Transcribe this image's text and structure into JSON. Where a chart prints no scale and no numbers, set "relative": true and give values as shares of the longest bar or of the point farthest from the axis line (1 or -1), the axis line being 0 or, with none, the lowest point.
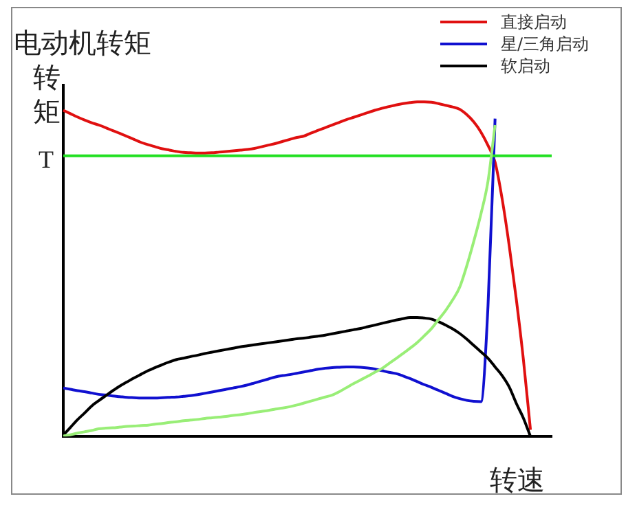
{
  "chart_data": {
    "type": "line",
    "title": "电动机转矩",
    "ylabel": "转矩",
    "xlabel": "转速",
    "relative": true,
    "legend": "top right",
    "marker": "none",
    "line_style": "solid",
    "grid": false,
    "categories": [
      null,
      null,
      null,
      null,
      null,
      null,
      null,
      null,
      null,
      null,
      null,
      null,
      null,
      null,
      null,
      null,
      null,
      null,
      null,
      null,
      null,
      null,
      null,
      null,
      null,
      null,
      null,
      null,
      null,
      null,
      null,
      null,
      null,
      null,
      null,
      null,
      null,
      null,
      null,
      null,
      null,
      null,
      null,
      null,
      null,
      null,
      null,
      null,
      null,
      null,
      null,
      null,
      null,
      null,
      null,
      null,
      null,
      null,
      null,
      null,
      null,
      null,
      null,
      null,
      null,
      null,
      null,
      null,
      null,
      null
    ],
    "annotations": [
      "T"
    ],
    "series": [
      {
        "name": "直接启动",
        "color": "#e01010",
        "values": [
          0.975,
          0.965,
          0.955,
          0.946,
          0.938,
          0.931,
          0.923,
          0.914,
          0.906,
          0.897,
          0.888,
          0.879,
          0.872,
          0.866,
          0.86,
          0.856,
          0.852,
          0.849,
          0.848,
          0.847,
          0.847,
          0.848,
          0.85,
          0.852,
          0.854,
          0.856,
          0.858,
          0.861,
          0.866,
          0.871,
          0.876,
          0.882,
          0.888,
          0.894,
          0.898,
          0.907,
          0.915,
          0.923,
          0.931,
          0.939,
          0.947,
          0.954,
          0.961,
          0.968,
          0.975,
          0.981,
          0.986,
          0.991,
          0.995,
          0.998,
          1.0,
          1.0,
          0.999,
          0.995,
          0.99,
          0.985,
          0.978,
          0.962,
          0.94,
          0.91,
          0.87,
          0.82,
          0.71,
          0.57,
          0.41,
          0.23,
          0.02,
          null,
          null,
          null
        ]
      },
      {
        "name": "星/三角启动",
        "color": "#1010d0",
        "values": [
          0.145,
          0.141,
          0.137,
          0.134,
          0.13,
          0.126,
          0.124,
          0.121,
          0.119,
          0.117,
          0.116,
          0.115,
          0.115,
          0.115,
          0.116,
          0.117,
          0.118,
          0.12,
          0.122,
          0.125,
          0.129,
          0.133,
          0.137,
          0.141,
          0.145,
          0.149,
          0.154,
          0.16,
          0.166,
          0.172,
          0.178,
          0.182,
          0.185,
          0.189,
          0.193,
          0.197,
          0.201,
          0.204,
          0.206,
          0.207,
          0.208,
          0.208,
          0.207,
          0.205,
          0.202,
          0.197,
          0.192,
          0.188,
          0.181,
          0.173,
          0.164,
          0.155,
          0.147,
          0.138,
          0.129,
          0.12,
          0.113,
          0.108,
          0.105,
          0.104,
          0.39,
          0.95,
          null,
          null,
          null,
          null,
          null,
          null,
          null,
          null
        ]
      },
      {
        "name": "软启动",
        "color": "#000000",
        "values": [
          0.004,
          0.027,
          0.05,
          0.07,
          0.091,
          0.107,
          0.122,
          0.137,
          0.151,
          0.163,
          0.175,
          0.186,
          0.197,
          0.206,
          0.215,
          0.223,
          0.23,
          0.234,
          0.239,
          0.243,
          0.248,
          0.252,
          0.256,
          0.26,
          0.264,
          0.268,
          0.271,
          0.274,
          0.277,
          0.28,
          0.283,
          0.286,
          0.289,
          0.292,
          0.294,
          0.297,
          0.3,
          0.303,
          0.307,
          0.311,
          0.315,
          0.319,
          0.323,
          0.328,
          0.333,
          0.338,
          0.343,
          0.348,
          0.352,
          0.356,
          0.356,
          0.354,
          0.351,
          0.343,
          0.333,
          0.322,
          0.308,
          0.291,
          0.272,
          0.253,
          0.234,
          0.208,
          0.182,
          0.148,
          0.099,
          0.055,
          0.0,
          null,
          null,
          null
        ]
      },
      {
        "color": "#22e022",
        "values": [
          0.839,
          0.839,
          0.839,
          0.839,
          0.839,
          0.839,
          0.839,
          0.839,
          0.839,
          0.839,
          0.839,
          0.839,
          0.839,
          0.839,
          0.839,
          0.839,
          0.839,
          0.839,
          0.839,
          0.839,
          0.839,
          0.839,
          0.839,
          0.839,
          0.839,
          0.839,
          0.839,
          0.839,
          0.839,
          0.839,
          0.839,
          0.839,
          0.839,
          0.839,
          0.839,
          0.839,
          0.839,
          0.839,
          0.839,
          0.839,
          0.839,
          0.839,
          0.839,
          0.839,
          0.839,
          0.839,
          0.839,
          0.839,
          0.839,
          0.839,
          0.839,
          0.839,
          0.839,
          0.839,
          0.839,
          0.839,
          0.839,
          0.839,
          0.839,
          0.839,
          0.839,
          0.839,
          0.839,
          0.839,
          0.839,
          0.839,
          0.839,
          0.839,
          0.839,
          0.839
        ]
      },
      {
        "color": "#99ee77",
        "values": [
          0.001,
          0.005,
          0.01,
          0.014,
          0.018,
          0.023,
          0.025,
          0.026,
          0.028,
          0.03,
          0.031,
          0.033,
          0.034,
          0.037,
          0.039,
          0.042,
          0.044,
          0.047,
          0.049,
          0.051,
          0.054,
          0.056,
          0.058,
          0.06,
          0.063,
          0.065,
          0.068,
          0.072,
          0.075,
          0.078,
          0.082,
          0.085,
          0.089,
          0.094,
          0.1,
          0.106,
          0.112,
          0.118,
          0.124,
          0.134,
          0.146,
          0.158,
          0.169,
          0.18,
          0.192,
          0.203,
          0.218,
          0.233,
          0.248,
          0.264,
          0.281,
          0.301,
          0.322,
          0.349,
          0.376,
          0.408,
          0.446,
          0.51,
          0.584,
          0.665,
          0.763,
          0.931,
          null,
          null,
          null,
          null,
          null,
          null,
          null,
          null
        ]
      }
    ]
  }
}
